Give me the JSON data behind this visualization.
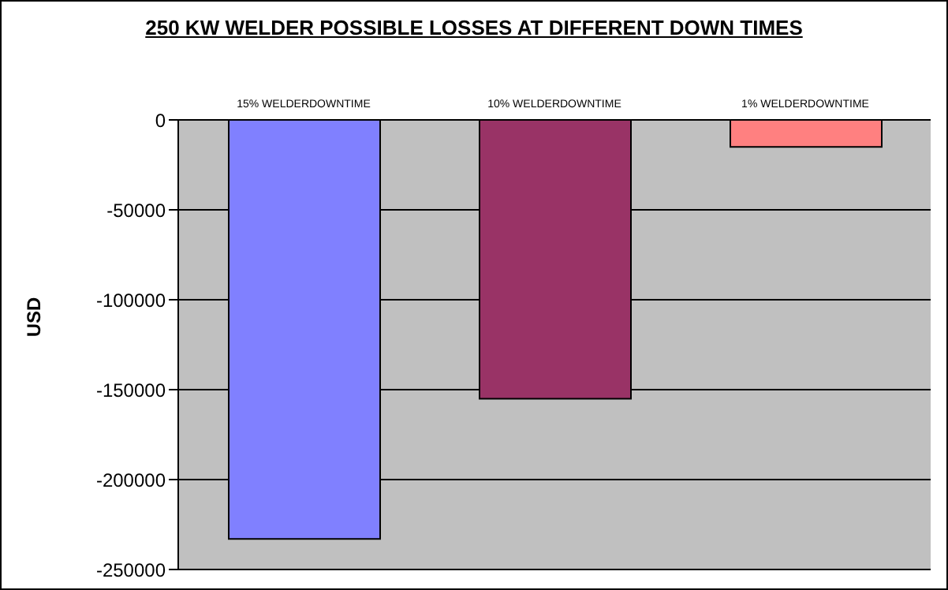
{
  "chart_data": {
    "type": "bar",
    "title": "250 KW WELDER POSSIBLE LOSSES AT DIFFERENT DOWN TIMES",
    "ylabel": "USD",
    "categories": [
      "15% WELDERDOWNTIME",
      "10% WELDERDOWNTIME",
      "1% WELDERDOWNTIME"
    ],
    "values": [
      -233000,
      -155000,
      -15000
    ],
    "colors": [
      "#8080ff",
      "#993366",
      "#ff8080"
    ],
    "ylim": [
      -250000,
      0
    ],
    "yticks": [
      -250000,
      -200000,
      -150000,
      -100000,
      -50000,
      0
    ],
    "grid": "y",
    "legend": false
  }
}
